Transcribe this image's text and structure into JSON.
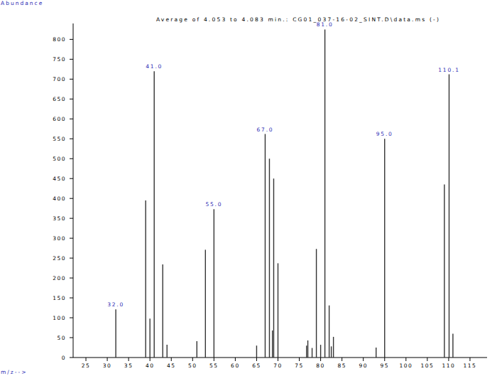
{
  "chart_data": {
    "type": "bar",
    "title": "Average of 4.053 to 4.083 min.: CG01_037-16-02_SINT.D\\data.ms (-)",
    "y_label": "Abundance",
    "x_label": "m/z-->",
    "x": [
      32,
      39,
      40,
      41,
      43,
      44,
      51,
      53,
      55,
      65,
      67,
      68,
      68.7,
      69,
      70,
      76.7,
      77,
      78,
      79,
      80,
      81,
      82,
      82.5,
      83,
      93,
      95,
      109,
      110.1,
      111
    ],
    "values": [
      121,
      395,
      98,
      720,
      234,
      32,
      41,
      271,
      373,
      30,
      562,
      500,
      68,
      450,
      237,
      30,
      43,
      24,
      273,
      32,
      825,
      131,
      28,
      52,
      25,
      550,
      435,
      712,
      60
    ],
    "color": "#333333",
    "annotations": [
      {
        "text": "32.0",
        "x": 32,
        "y": 121
      },
      {
        "text": "41.0",
        "x": 41,
        "y": 720
      },
      {
        "text": "55.0",
        "x": 55,
        "y": 373
      },
      {
        "text": "67.0",
        "x": 67,
        "y": 562
      },
      {
        "text": "81.0",
        "x": 81,
        "y": 825
      },
      {
        "text": "95.0",
        "x": 95,
        "y": 550
      },
      {
        "text": "110.1",
        "x": 110.1,
        "y": 712
      }
    ],
    "xlim": [
      22,
      119
    ],
    "xticks": [
      25,
      30,
      35,
      40,
      45,
      50,
      55,
      60,
      65,
      70,
      75,
      80,
      85,
      90,
      95,
      100,
      105,
      110,
      115
    ],
    "ylim": [
      0,
      840
    ],
    "yticks": [
      0,
      50,
      100,
      150,
      200,
      250,
      300,
      350,
      400,
      450,
      500,
      550,
      600,
      650,
      700,
      750,
      800
    ],
    "grid": false
  }
}
